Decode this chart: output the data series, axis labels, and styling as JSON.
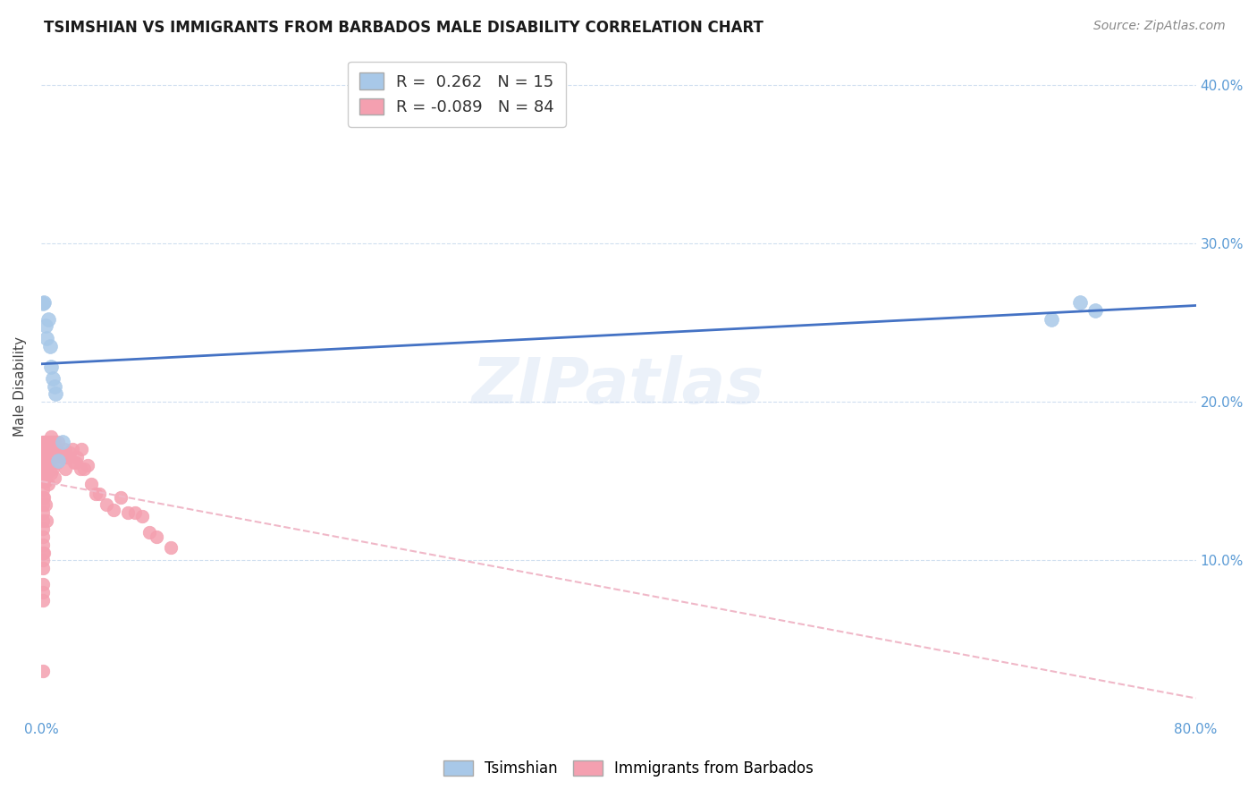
{
  "title": "TSIMSHIAN VS IMMIGRANTS FROM BARBADOS MALE DISABILITY CORRELATION CHART",
  "source": "Source: ZipAtlas.com",
  "ylabel": "Male Disability",
  "xlim": [
    0.0,
    0.8
  ],
  "ylim": [
    0.0,
    0.42
  ],
  "watermark": "ZIPatlas",
  "legend1_label": "R =  0.262   N = 15",
  "legend2_label": "R = -0.089   N = 84",
  "tsimshian_color": "#a8c8e8",
  "barbados_color": "#f4a0b0",
  "trendline_tsimshian_color": "#4472c4",
  "trendline_barbados_color": "#f0b8c8",
  "tick_color": "#5b9bd5",
  "grid_color": "#d0dff0",
  "tsimshian_x": [
    0.001,
    0.002,
    0.003,
    0.004,
    0.005,
    0.006,
    0.007,
    0.008,
    0.009,
    0.01,
    0.012,
    0.015,
    0.7,
    0.72,
    0.73
  ],
  "tsimshian_y": [
    0.262,
    0.263,
    0.248,
    0.24,
    0.252,
    0.235,
    0.222,
    0.215,
    0.21,
    0.205,
    0.163,
    0.175,
    0.252,
    0.263,
    0.258
  ],
  "barbados_x": [
    0.001,
    0.001,
    0.001,
    0.001,
    0.001,
    0.001,
    0.001,
    0.001,
    0.001,
    0.001,
    0.001,
    0.001,
    0.001,
    0.001,
    0.001,
    0.001,
    0.001,
    0.001,
    0.001,
    0.001,
    0.002,
    0.002,
    0.002,
    0.002,
    0.002,
    0.002,
    0.002,
    0.002,
    0.003,
    0.003,
    0.003,
    0.003,
    0.003,
    0.003,
    0.004,
    0.004,
    0.004,
    0.004,
    0.005,
    0.005,
    0.005,
    0.005,
    0.006,
    0.006,
    0.007,
    0.007,
    0.007,
    0.008,
    0.008,
    0.009,
    0.009,
    0.01,
    0.01,
    0.011,
    0.012,
    0.013,
    0.014,
    0.015,
    0.016,
    0.017,
    0.018,
    0.019,
    0.02,
    0.022,
    0.023,
    0.024,
    0.025,
    0.027,
    0.028,
    0.03,
    0.032,
    0.035,
    0.038,
    0.04,
    0.045,
    0.05,
    0.055,
    0.06,
    0.065,
    0.07,
    0.075,
    0.08,
    0.09,
    0.001
  ],
  "barbados_y": [
    0.175,
    0.17,
    0.165,
    0.16,
    0.155,
    0.15,
    0.145,
    0.14,
    0.135,
    0.13,
    0.125,
    0.12,
    0.115,
    0.11,
    0.105,
    0.1,
    0.095,
    0.085,
    0.08,
    0.03,
    0.175,
    0.17,
    0.165,
    0.16,
    0.155,
    0.15,
    0.14,
    0.105,
    0.175,
    0.17,
    0.165,
    0.16,
    0.15,
    0.135,
    0.175,
    0.17,
    0.155,
    0.125,
    0.175,
    0.165,
    0.16,
    0.148,
    0.175,
    0.17,
    0.178,
    0.165,
    0.155,
    0.175,
    0.158,
    0.175,
    0.152,
    0.17,
    0.165,
    0.162,
    0.175,
    0.168,
    0.165,
    0.165,
    0.17,
    0.158,
    0.165,
    0.165,
    0.168,
    0.17,
    0.162,
    0.162,
    0.165,
    0.158,
    0.17,
    0.158,
    0.16,
    0.148,
    0.142,
    0.142,
    0.135,
    0.132,
    0.14,
    0.13,
    0.13,
    0.128,
    0.118,
    0.115,
    0.108,
    0.075
  ]
}
